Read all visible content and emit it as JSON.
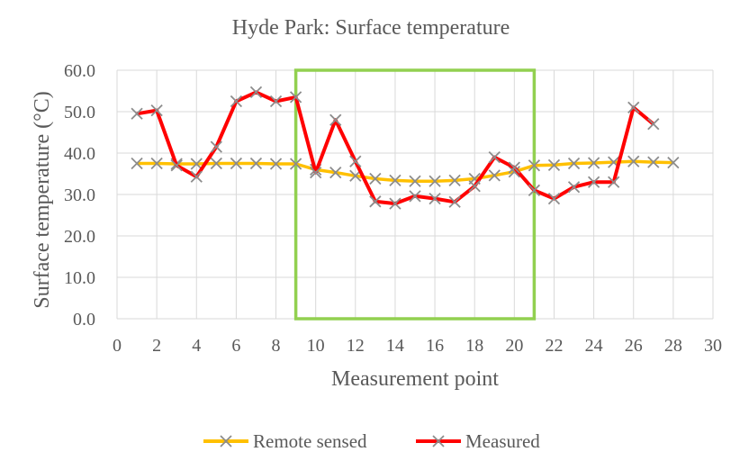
{
  "chart_data": {
    "type": "line",
    "title": "Hyde Park: Surface temperature",
    "xlabel": "Measurement point",
    "ylabel": "Surface temperature (°C)",
    "xlim": [
      0,
      30
    ],
    "ylim": [
      0,
      60
    ],
    "x_ticks": [
      0,
      2,
      4,
      6,
      8,
      10,
      12,
      14,
      16,
      18,
      20,
      22,
      24,
      26,
      28,
      30
    ],
    "y_ticks": [
      0,
      10,
      20,
      30,
      40,
      50,
      60
    ],
    "y_tick_labels": [
      "0.0",
      "10.0",
      "20.0",
      "30.0",
      "40.0",
      "50.0",
      "60.0"
    ],
    "grid": true,
    "legend_position": "bottom",
    "highlight_box": {
      "x_range": [
        9,
        21
      ],
      "y_range": [
        0,
        60
      ],
      "color": "#92D050"
    },
    "series": [
      {
        "name": "Remote sensed",
        "color": "#FFC000",
        "marker": "x",
        "x": [
          1,
          2,
          3,
          4,
          5,
          6,
          7,
          8,
          9,
          10,
          11,
          12,
          13,
          14,
          15,
          16,
          17,
          18,
          19,
          20,
          21,
          22,
          23,
          24,
          25,
          26,
          27,
          28
        ],
        "values": [
          37.5,
          37.5,
          37.4,
          37.4,
          37.5,
          37.5,
          37.5,
          37.4,
          37.4,
          36.0,
          35.3,
          34.5,
          33.8,
          33.4,
          33.2,
          33.2,
          33.4,
          33.8,
          34.6,
          35.5,
          37.0,
          37.1,
          37.5,
          37.6,
          37.8,
          38.0,
          37.8,
          37.7
        ]
      },
      {
        "name": "Measured",
        "color": "#FF0000",
        "marker": "x",
        "x": [
          1,
          2,
          3,
          4,
          5,
          6,
          7,
          8,
          9,
          10,
          11,
          12,
          13,
          14,
          15,
          16,
          17,
          18,
          19,
          20,
          21,
          22,
          23,
          24,
          25,
          26,
          27
        ],
        "values": [
          49.5,
          50.3,
          37.0,
          34.3,
          41.5,
          52.5,
          54.7,
          52.5,
          53.5,
          35.3,
          48.0,
          38.0,
          28.3,
          27.8,
          29.6,
          29.0,
          28.2,
          32.0,
          39.0,
          36.5,
          31.0,
          29.0,
          31.8,
          33.0,
          33.0,
          51.0,
          47.0
        ]
      }
    ]
  }
}
